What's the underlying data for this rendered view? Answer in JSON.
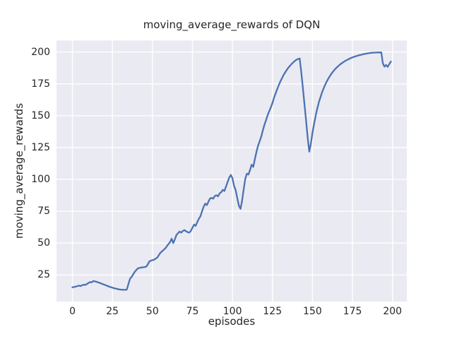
{
  "figure": {
    "background": "#ffffff",
    "plot_background": "#eaeaf2",
    "grid_color": "#ffffff",
    "text_color": "#262626"
  },
  "chart_data": {
    "type": "line",
    "title": "moving_average_rewards of DQN",
    "xlabel": "episodes",
    "ylabel": "moving_average_rewards",
    "series_name": "moving_average_rewards",
    "series_color": "#4c72b0",
    "line_width": 2.3,
    "grid": true,
    "legend": "none",
    "style": "seaborn-darkgrid",
    "xlim": [
      -9.95,
      208.95
    ],
    "ylim": [
      4.1,
      208.9
    ],
    "xticks": [
      0,
      25,
      50,
      75,
      100,
      125,
      150,
      175,
      200
    ],
    "yticks": [
      25,
      50,
      75,
      100,
      125,
      150,
      175,
      200
    ],
    "x": [
      0,
      1,
      2,
      3,
      4,
      5,
      6,
      7,
      8,
      9,
      10,
      11,
      12,
      13,
      14,
      15,
      16,
      17,
      18,
      19,
      20,
      21,
      22,
      23,
      24,
      25,
      26,
      27,
      28,
      29,
      30,
      31,
      32,
      33,
      34,
      35,
      36,
      37,
      38,
      39,
      40,
      41,
      42,
      43,
      44,
      45,
      46,
      47,
      48,
      49,
      50,
      51,
      52,
      53,
      54,
      55,
      56,
      57,
      58,
      59,
      60,
      61,
      62,
      63,
      64,
      65,
      66,
      67,
      68,
      69,
      70,
      71,
      72,
      73,
      74,
      75,
      76,
      77,
      78,
      79,
      80,
      81,
      82,
      83,
      84,
      85,
      86,
      87,
      88,
      89,
      90,
      91,
      92,
      93,
      94,
      95,
      96,
      97,
      98,
      99,
      100,
      101,
      102,
      103,
      104,
      105,
      106,
      107,
      108,
      109,
      110,
      111,
      112,
      113,
      114,
      115,
      116,
      117,
      118,
      119,
      120,
      121,
      122,
      123,
      124,
      125,
      126,
      127,
      128,
      129,
      130,
      131,
      132,
      133,
      134,
      135,
      136,
      137,
      138,
      139,
      140,
      141,
      142,
      143,
      144,
      145,
      146,
      147,
      148,
      149,
      150,
      151,
      152,
      153,
      154,
      155,
      156,
      157,
      158,
      159,
      160,
      161,
      162,
      163,
      164,
      165,
      166,
      167,
      168,
      169,
      170,
      171,
      172,
      173,
      174,
      175,
      176,
      177,
      178,
      179,
      180,
      181,
      182,
      183,
      184,
      185,
      186,
      187,
      188,
      189,
      190,
      191,
      192,
      193,
      194,
      195,
      196,
      197,
      198,
      199
    ],
    "values": [
      15.3,
      15.5,
      15.8,
      16.2,
      16.6,
      16.3,
      16.8,
      17.4,
      17.1,
      17.8,
      18.7,
      19.4,
      19.1,
      20.2,
      20.0,
      19.6,
      19.2,
      18.8,
      18.3,
      17.8,
      17.3,
      16.8,
      16.3,
      15.8,
      15.4,
      15.0,
      14.6,
      14.3,
      14.0,
      13.7,
      13.5,
      13.4,
      13.3,
      13.3,
      13.6,
      18.0,
      22.0,
      23.5,
      25.5,
      27.5,
      29.0,
      30.2,
      30.5,
      30.8,
      31.0,
      31.2,
      31.4,
      33.0,
      35.5,
      36.2,
      36.6,
      36.9,
      37.8,
      38.6,
      40.5,
      42.4,
      43.5,
      44.7,
      45.8,
      47.5,
      49.2,
      50.7,
      53.5,
      50.0,
      53.0,
      56.3,
      57.8,
      59.1,
      58.2,
      59.5,
      60.2,
      59.3,
      58.6,
      58.2,
      59.5,
      62.0,
      64.5,
      63.5,
      66.5,
      69.0,
      71.0,
      75.0,
      78.5,
      81.0,
      79.8,
      82.5,
      85.0,
      85.5,
      84.8,
      87.0,
      87.5,
      86.7,
      89.0,
      90.0,
      91.8,
      90.9,
      94.5,
      98.0,
      101.5,
      103.5,
      101.0,
      95.0,
      91.5,
      85.5,
      79.5,
      76.8,
      83.0,
      92.0,
      100.5,
      104.5,
      103.8,
      107.5,
      111.5,
      109.8,
      116.0,
      121.5,
      126.5,
      130.0,
      133.5,
      138.5,
      143.0,
      146.5,
      150.5,
      153.5,
      156.5,
      160.0,
      164.0,
      167.5,
      171.0,
      174.0,
      177.0,
      179.5,
      182.0,
      184.0,
      186.0,
      187.7,
      189.2,
      190.6,
      191.8,
      193.0,
      193.9,
      194.5,
      194.9,
      184.0,
      172.0,
      159.0,
      146.0,
      133.0,
      121.7,
      128.0,
      136.5,
      143.5,
      150.0,
      155.5,
      160.5,
      164.5,
      168.3,
      171.5,
      174.5,
      177.0,
      179.3,
      181.3,
      183.2,
      184.8,
      186.3,
      187.6,
      188.8,
      189.9,
      190.9,
      191.8,
      192.6,
      193.3,
      194.0,
      194.6,
      195.2,
      195.7,
      196.2,
      196.6,
      197.0,
      197.4,
      197.7,
      198.0,
      198.3,
      198.6,
      198.8,
      199.0,
      199.2,
      199.3,
      199.4,
      199.5,
      199.55,
      199.6,
      199.6,
      199.65,
      191.0,
      188.5,
      189.8,
      188.3,
      190.5,
      192.5
    ]
  }
}
